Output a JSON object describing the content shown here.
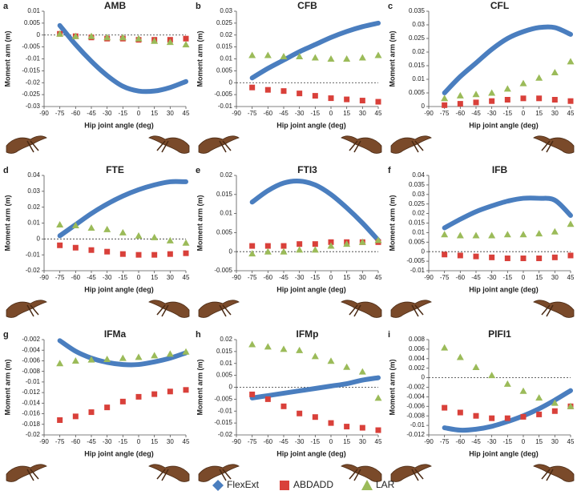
{
  "chart_data": [
    {
      "type": "line",
      "panel": "a",
      "title": "AMB",
      "x_label": "Hip joint angle (deg)",
      "y_label": "Moment arm (m)",
      "x": [
        -75,
        -60,
        -45,
        -30,
        -15,
        0,
        15,
        30,
        45
      ],
      "xlim": [
        -90,
        45
      ],
      "xticks": [
        -90,
        -75,
        -60,
        -45,
        -30,
        -15,
        0,
        15,
        30,
        45
      ],
      "ylim": [
        -0.03,
        0.01
      ],
      "yticks": [
        -0.03,
        -0.025,
        -0.02,
        -0.015,
        -0.01,
        -0.005,
        0,
        0.005,
        0.01
      ],
      "series": [
        {
          "name": "FlexExt",
          "color": "#4a7ebf",
          "style": "line",
          "values": [
            0.004,
            -0.004,
            -0.011,
            -0.017,
            -0.0215,
            -0.0235,
            -0.0235,
            -0.022,
            -0.0195
          ]
        },
        {
          "name": "ABDADD",
          "color": "#d9403a",
          "style": "square",
          "values": [
            0.0005,
            -0.0005,
            -0.001,
            -0.0015,
            -0.0015,
            -0.002,
            -0.002,
            -0.002,
            -0.0015
          ]
        },
        {
          "name": "LAR",
          "color": "#9bbb59",
          "style": "triangle",
          "values": [
            0.0005,
            -0.0005,
            -0.0005,
            -0.001,
            -0.001,
            -0.0015,
            -0.0025,
            -0.003,
            -0.004
          ]
        }
      ]
    },
    {
      "type": "line",
      "panel": "b",
      "title": "CFB",
      "x_label": "Hip joint angle (deg)",
      "y_label": "Moment arm (m)",
      "x": [
        -75,
        -60,
        -45,
        -30,
        -15,
        0,
        15,
        30,
        45
      ],
      "xlim": [
        -90,
        45
      ],
      "xticks": [
        -90,
        -75,
        -60,
        -45,
        -30,
        -15,
        0,
        15,
        30,
        45
      ],
      "ylim": [
        -0.01,
        0.03
      ],
      "yticks": [
        -0.01,
        -0.005,
        0,
        0.005,
        0.01,
        0.015,
        0.02,
        0.025,
        0.03
      ],
      "series": [
        {
          "name": "FlexExt",
          "color": "#4a7ebf",
          "style": "line",
          "values": [
            0.002,
            0.006,
            0.0095,
            0.013,
            0.016,
            0.019,
            0.0215,
            0.0235,
            0.025
          ]
        },
        {
          "name": "ABDADD",
          "color": "#d9403a",
          "style": "square",
          "values": [
            -0.002,
            -0.003,
            -0.0035,
            -0.0045,
            -0.0055,
            -0.0065,
            -0.007,
            -0.0075,
            -0.008
          ]
        },
        {
          "name": "LAR",
          "color": "#9bbb59",
          "style": "triangle",
          "values": [
            0.0115,
            0.0115,
            0.011,
            0.011,
            0.0105,
            0.01,
            0.01,
            0.0105,
            0.0115
          ]
        }
      ]
    },
    {
      "type": "line",
      "panel": "c",
      "title": "CFL",
      "x_label": "Hip joint angle (deg)",
      "y_label": "Moment arm (m)",
      "x": [
        -75,
        -60,
        -45,
        -30,
        -15,
        0,
        15,
        30,
        45
      ],
      "xlim": [
        -90,
        45
      ],
      "xticks": [
        -90,
        -75,
        -60,
        -45,
        -30,
        -15,
        0,
        15,
        30,
        45
      ],
      "ylim": [
        0,
        0.035
      ],
      "yticks": [
        0,
        0.005,
        0.01,
        0.015,
        0.02,
        0.025,
        0.03,
        0.035
      ],
      "series": [
        {
          "name": "FlexExt",
          "color": "#4a7ebf",
          "style": "line",
          "values": [
            0.005,
            0.011,
            0.016,
            0.021,
            0.025,
            0.0275,
            0.029,
            0.029,
            0.0265
          ]
        },
        {
          "name": "ABDADD",
          "color": "#d9403a",
          "style": "square",
          "values": [
            0.0005,
            0.001,
            0.0015,
            0.002,
            0.0025,
            0.003,
            0.003,
            0.0025,
            0.002
          ]
        },
        {
          "name": "LAR",
          "color": "#9bbb59",
          "style": "triangle",
          "values": [
            0.003,
            0.004,
            0.0045,
            0.005,
            0.0065,
            0.0085,
            0.0105,
            0.0125,
            0.0165
          ]
        }
      ]
    },
    {
      "type": "line",
      "panel": "d",
      "title": "FTE",
      "x_label": "Hip joint angle (deg)",
      "y_label": "Moment arm (m)",
      "x": [
        -75,
        -60,
        -45,
        -30,
        -15,
        0,
        15,
        30,
        45
      ],
      "xlim": [
        -90,
        45
      ],
      "xticks": [
        -90,
        -75,
        -60,
        -45,
        -30,
        -15,
        0,
        15,
        30,
        45
      ],
      "ylim": [
        -0.02,
        0.04
      ],
      "yticks": [
        -0.02,
        -0.01,
        0,
        0.01,
        0.02,
        0.03,
        0.04
      ],
      "series": [
        {
          "name": "FlexExt",
          "color": "#4a7ebf",
          "style": "line",
          "values": [
            0.002,
            0.009,
            0.016,
            0.022,
            0.027,
            0.031,
            0.034,
            0.036,
            0.036
          ]
        },
        {
          "name": "ABDADD",
          "color": "#d9403a",
          "style": "square",
          "values": [
            -0.004,
            -0.0055,
            -0.007,
            -0.008,
            -0.0095,
            -0.01,
            -0.01,
            -0.0095,
            -0.009
          ]
        },
        {
          "name": "LAR",
          "color": "#9bbb59",
          "style": "triangle",
          "values": [
            0.009,
            0.0085,
            0.007,
            0.006,
            0.004,
            0.002,
            0.001,
            -0.001,
            -0.0025
          ]
        }
      ]
    },
    {
      "type": "line",
      "panel": "e",
      "title": "FTI3",
      "x_label": "Hip joint angle (deg)",
      "y_label": "Moment arm (m)",
      "x": [
        -75,
        -60,
        -45,
        -30,
        -15,
        0,
        15,
        30,
        45
      ],
      "xlim": [
        -90,
        45
      ],
      "xticks": [
        -90,
        -75,
        -60,
        -45,
        -30,
        -15,
        0,
        15,
        30,
        45
      ],
      "ylim": [
        -0.005,
        0.02
      ],
      "yticks": [
        -0.005,
        0,
        0.005,
        0.01,
        0.015,
        0.02
      ],
      "series": [
        {
          "name": "FlexExt",
          "color": "#4a7ebf",
          "style": "line",
          "values": [
            0.013,
            0.016,
            0.018,
            0.0185,
            0.0175,
            0.015,
            0.0115,
            0.0075,
            0.003
          ]
        },
        {
          "name": "ABDADD",
          "color": "#d9403a",
          "style": "square",
          "values": [
            0.0015,
            0.0015,
            0.0015,
            0.002,
            0.002,
            0.0025,
            0.0025,
            0.0025,
            0.0025
          ]
        },
        {
          "name": "LAR",
          "color": "#9bbb59",
          "style": "triangle",
          "values": [
            -0.0005,
            0,
            0,
            0.0005,
            0.0005,
            0.0015,
            0.002,
            0.0025,
            0.003
          ]
        }
      ]
    },
    {
      "type": "line",
      "panel": "f",
      "title": "IFB",
      "x_label": "Hip joint angle (deg)",
      "y_label": "Moment arm (m)",
      "x": [
        -75,
        -60,
        -45,
        -30,
        -15,
        0,
        15,
        30,
        45
      ],
      "xlim": [
        -90,
        45
      ],
      "xticks": [
        -90,
        -75,
        -60,
        -45,
        -30,
        -15,
        0,
        15,
        30,
        45
      ],
      "ylim": [
        -0.01,
        0.04
      ],
      "yticks": [
        -0.01,
        -0.005,
        0,
        0.005,
        0.01,
        0.015,
        0.02,
        0.025,
        0.03,
        0.035,
        0.04
      ],
      "series": [
        {
          "name": "FlexExt",
          "color": "#4a7ebf",
          "style": "line",
          "values": [
            0.0125,
            0.017,
            0.021,
            0.024,
            0.0265,
            0.028,
            0.028,
            0.027,
            0.019
          ]
        },
        {
          "name": "ABDADD",
          "color": "#d9403a",
          "style": "square",
          "values": [
            -0.0015,
            -0.002,
            -0.0025,
            -0.003,
            -0.0035,
            -0.0035,
            -0.0035,
            -0.003,
            -0.002
          ]
        },
        {
          "name": "LAR",
          "color": "#9bbb59",
          "style": "triangle",
          "values": [
            0.009,
            0.0085,
            0.0085,
            0.0085,
            0.009,
            0.009,
            0.0095,
            0.0105,
            0.0145
          ]
        }
      ]
    },
    {
      "type": "line",
      "panel": "g",
      "title": "IFMa",
      "x_label": "Hip joint angle (deg)",
      "y_label": "Moment arm (m)",
      "x": [
        -75,
        -60,
        -45,
        -30,
        -15,
        0,
        15,
        30,
        45
      ],
      "xlim": [
        -90,
        45
      ],
      "xticks": [
        -90,
        -75,
        -60,
        -45,
        -30,
        -15,
        0,
        15,
        30,
        45
      ],
      "ylim": [
        -0.02,
        -0.002
      ],
      "yticks": [
        -0.02,
        -0.018,
        -0.016,
        -0.014,
        -0.012,
        -0.01,
        -0.008,
        -0.006,
        -0.004,
        -0.002
      ],
      "series": [
        {
          "name": "FlexExt",
          "color": "#4a7ebf",
          "style": "line",
          "values": [
            -0.0022,
            -0.0042,
            -0.0055,
            -0.0063,
            -0.0067,
            -0.0067,
            -0.0062,
            -0.0055,
            -0.0045
          ]
        },
        {
          "name": "ABDADD",
          "color": "#d9403a",
          "style": "square",
          "values": [
            -0.0172,
            -0.0165,
            -0.0157,
            -0.0148,
            -0.0137,
            -0.0128,
            -0.0123,
            -0.0118,
            -0.0115
          ]
        },
        {
          "name": "LAR",
          "color": "#9bbb59",
          "style": "triangle",
          "values": [
            -0.0065,
            -0.006,
            -0.0058,
            -0.0057,
            -0.0055,
            -0.0053,
            -0.005,
            -0.0047,
            -0.0043
          ]
        }
      ]
    },
    {
      "type": "line",
      "panel": "h",
      "title": "IFMp",
      "x_label": "Hip joint angle (deg)",
      "y_label": "Moment arm (m)",
      "x": [
        -75,
        -60,
        -45,
        -30,
        -15,
        0,
        15,
        30,
        45
      ],
      "xlim": [
        -90,
        45
      ],
      "xticks": [
        -90,
        -75,
        -60,
        -45,
        -30,
        -15,
        0,
        15,
        30,
        45
      ],
      "ylim": [
        -0.02,
        0.02
      ],
      "yticks": [
        -0.02,
        -0.015,
        -0.01,
        -0.005,
        0,
        0.005,
        0.01,
        0.015,
        0.02
      ],
      "series": [
        {
          "name": "FlexExt",
          "color": "#4a7ebf",
          "style": "line",
          "values": [
            -0.0045,
            -0.0035,
            -0.0025,
            -0.0015,
            -0.0005,
            0.0005,
            0.0015,
            0.003,
            0.004
          ]
        },
        {
          "name": "ABDADD",
          "color": "#d9403a",
          "style": "square",
          "values": [
            -0.003,
            -0.005,
            -0.008,
            -0.011,
            -0.0125,
            -0.015,
            -0.0165,
            -0.017,
            -0.018
          ]
        },
        {
          "name": "LAR",
          "color": "#9bbb59",
          "style": "triangle",
          "values": [
            0.018,
            0.017,
            0.016,
            0.0155,
            0.013,
            0.011,
            0.0085,
            0.0065,
            -0.0045
          ]
        }
      ]
    },
    {
      "type": "line",
      "panel": "i",
      "title": "PIFI1",
      "x_label": "Hip joint angle (deg)",
      "y_label": "Moment arm (m)",
      "x": [
        -75,
        -60,
        -45,
        -30,
        -15,
        0,
        15,
        30,
        45
      ],
      "xlim": [
        -90,
        45
      ],
      "xticks": [
        -90,
        -75,
        -60,
        -45,
        -30,
        -15,
        0,
        15,
        30,
        45
      ],
      "ylim": [
        -0.012,
        0.008
      ],
      "yticks": [
        -0.012,
        -0.01,
        -0.008,
        -0.006,
        -0.004,
        -0.002,
        0,
        0.002,
        0.004,
        0.006,
        0.008
      ],
      "series": [
        {
          "name": "FlexExt",
          "color": "#4a7ebf",
          "style": "line",
          "values": [
            -0.0105,
            -0.011,
            -0.0108,
            -0.0102,
            -0.0092,
            -0.008,
            -0.0065,
            -0.0047,
            -0.0027
          ]
        },
        {
          "name": "ABDADD",
          "color": "#d9403a",
          "style": "square",
          "values": [
            -0.0063,
            -0.0073,
            -0.008,
            -0.0085,
            -0.0085,
            -0.0082,
            -0.0077,
            -0.007,
            -0.006
          ]
        },
        {
          "name": "LAR",
          "color": "#9bbb59",
          "style": "triangle",
          "values": [
            0.0063,
            0.0043,
            0.0022,
            0.0005,
            -0.0013,
            -0.0028,
            -0.0042,
            -0.0053,
            -0.006
          ]
        }
      ]
    }
  ]
}
